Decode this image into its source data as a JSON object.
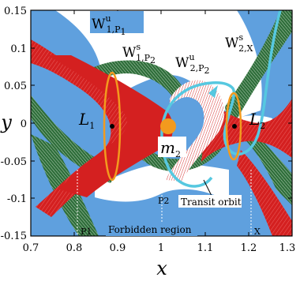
{
  "axes": {
    "xlabel": "x",
    "ylabel": "y",
    "xticks": [
      "0.7",
      "0.8",
      "0.9",
      "1",
      "1.1",
      "1.2",
      "1.3"
    ],
    "yticks": [
      "0.15",
      "0.1",
      "0.05",
      "0",
      "-0.05",
      "-0.1",
      "-0.15"
    ],
    "xlim": [
      0.7,
      1.3
    ],
    "ylim": [
      -0.15,
      0.15
    ]
  },
  "labels": {
    "w1p1": {
      "main": "W",
      "sup": "u",
      "sub": "1,P"
    },
    "w1p2": {
      "main": "W",
      "sup": "s",
      "sub": "1,P"
    },
    "w2p2": {
      "main": "W",
      "sup": "u",
      "sub": "2,P"
    },
    "w2x": {
      "main": "W",
      "sup": "s",
      "sub": "2,X"
    },
    "sub_p1": "1",
    "sub_p2": "2",
    "L1": {
      "main": "L",
      "sub": "1"
    },
    "L2": {
      "main": "L",
      "sub": "2"
    },
    "m2": {
      "main": "m",
      "sub": "2"
    },
    "p1": "P1",
    "p2": "P2",
    "x_region": "X",
    "transit": "Transit orbit",
    "forbidden": "Forbidden region"
  },
  "colors": {
    "forbidden": "#5fa0de",
    "red_tube": "#d42020",
    "green_tube": "#2e6e3a",
    "orange": "#f39a1e",
    "transit": "#56c8e0"
  }
}
